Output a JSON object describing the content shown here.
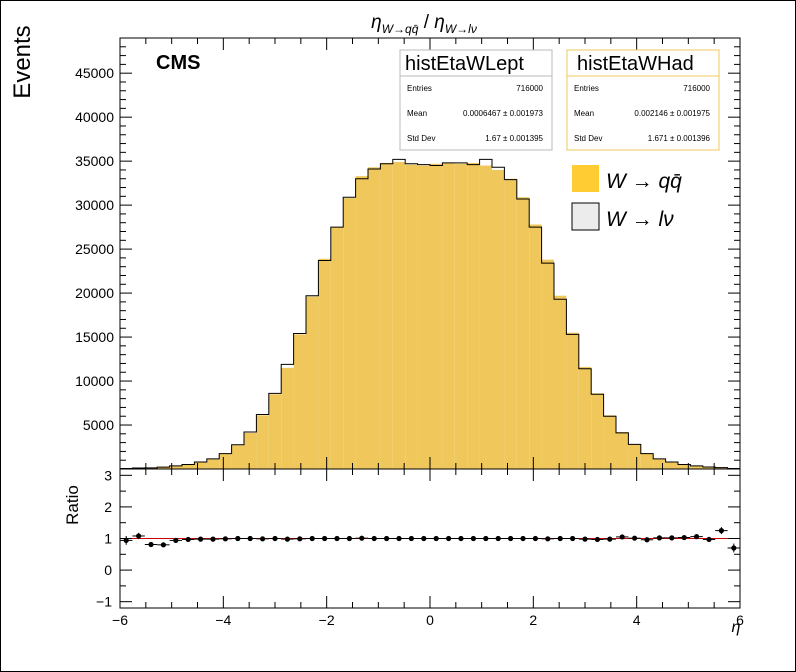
{
  "title": {
    "numer_base": "η",
    "numer_sub": "W→qq̄",
    "separator": "/",
    "denom_base": "η",
    "denom_sub": "W→lν"
  },
  "cms_label": "CMS",
  "colors": {
    "had_fill": "#efc75b",
    "lep_fill": "#ececec",
    "had_legend": "#ffcc33",
    "stats_had_border": "#efc75b",
    "ratio_marker": "#000000",
    "ratio_line": "#cc0000"
  },
  "stats_boxes": [
    {
      "name": "histEtaWLept",
      "rows": [
        {
          "label": "Entries",
          "value": "716000"
        },
        {
          "label": "Mean",
          "value": "0.0006467 ± 0.001973"
        },
        {
          "label": "Std Dev",
          "value": "1.67 ± 0.001395"
        }
      ]
    },
    {
      "name": "histEtaWHad",
      "rows": [
        {
          "label": "Entries",
          "value": "716000"
        },
        {
          "label": "Mean",
          "value": "0.002146 ± 0.001975"
        },
        {
          "label": "Std Dev",
          "value": "1.671 ± 0.001396"
        }
      ]
    }
  ],
  "legend": [
    {
      "label": "W → qq̄",
      "color_key": "had_legend"
    },
    {
      "label": "W → lν",
      "color_key": "lep_fill"
    }
  ],
  "chart_data": [
    {
      "type": "bar",
      "ylabel": "Events",
      "xlim": [
        -6,
        6
      ],
      "ylim": [
        0,
        49000
      ],
      "ytick_labels": [
        "5000",
        "10000",
        "15000",
        "20000",
        "25000",
        "30000",
        "35000",
        "40000",
        "45000"
      ],
      "yticks": [
        5000,
        10000,
        15000,
        20000,
        25000,
        30000,
        35000,
        40000,
        45000
      ],
      "bin_edges_start": -6,
      "bin_width": 0.24,
      "series": [
        {
          "name": "W → qq̄",
          "style": "filled",
          "values": [
            60,
            100,
            160,
            250,
            350,
            520,
            760,
            1100,
            1700,
            2700,
            4100,
            6100,
            8500,
            11500,
            15300,
            19600,
            23900,
            27500,
            30800,
            33300,
            34300,
            34800,
            34900,
            34600,
            34500,
            34700,
            34800,
            34700,
            34800,
            34500,
            34000,
            33000,
            30900,
            27800,
            23800,
            19700,
            15500,
            11600,
            8600,
            6100,
            4200,
            2800,
            1800,
            1150,
            780,
            520,
            350,
            240,
            150,
            90
          ]
        },
        {
          "name": "W → lν",
          "style": "outline",
          "values": [
            60,
            110,
            130,
            210,
            360,
            510,
            800,
            1150,
            1750,
            2750,
            4200,
            6200,
            8600,
            11900,
            15400,
            19700,
            23700,
            27500,
            30900,
            33000,
            34100,
            34700,
            35200,
            34700,
            34600,
            34500,
            34800,
            34800,
            34600,
            35200,
            34300,
            32900,
            30700,
            27500,
            23400,
            19300,
            15300,
            11400,
            8500,
            6000,
            4100,
            2800,
            1750,
            1150,
            800,
            510,
            360,
            230,
            150,
            60
          ]
        }
      ]
    },
    {
      "type": "scatter",
      "ylabel": "Ratio",
      "xlabel": "η",
      "xlim": [
        -6,
        6
      ],
      "ylim": [
        -1.2,
        3.2
      ],
      "xticks": [
        -6,
        -4,
        -2,
        0,
        2,
        4,
        6
      ],
      "xtick_labels": [
        "−6",
        "−4",
        "−2",
        "0",
        "2",
        "4",
        "6"
      ],
      "yticks": [
        -1,
        0,
        1,
        2,
        3
      ],
      "ytick_labels": [
        "−1",
        "0",
        "1",
        "2",
        "3"
      ],
      "reference_line": 1,
      "values": [
        0.94,
        1.08,
        0.81,
        0.8,
        0.94,
        0.97,
        0.98,
        0.98,
        0.99,
        1.0,
        1.0,
        0.99,
        1.0,
        0.98,
        0.99,
        1.0,
        1.0,
        1.0,
        1.0,
        1.01,
        1.0,
        1.0,
        1.0,
        1.0,
        1.0,
        1.0,
        1.0,
        1.0,
        1.0,
        1.0,
        1.0,
        1.0,
        1.0,
        1.0,
        0.99,
        1.0,
        1.0,
        0.98,
        0.97,
        0.98,
        1.05,
        1.01,
        0.96,
        1.02,
        1.02,
        1.03,
        1.06,
        0.97,
        1.25,
        0.7
      ],
      "errors": [
        0.14,
        0.1,
        0.08,
        0.06,
        0.05,
        0.04,
        0.04,
        0.03,
        0.03,
        0.02,
        0.02,
        0.02,
        0.02,
        0.02,
        0.02,
        0.01,
        0.01,
        0.01,
        0.01,
        0.01,
        0.01,
        0.01,
        0.01,
        0.01,
        0.01,
        0.01,
        0.01,
        0.01,
        0.01,
        0.01,
        0.01,
        0.01,
        0.01,
        0.01,
        0.01,
        0.01,
        0.02,
        0.02,
        0.02,
        0.02,
        0.02,
        0.03,
        0.03,
        0.04,
        0.04,
        0.05,
        0.06,
        0.08,
        0.11,
        0.14
      ]
    }
  ]
}
